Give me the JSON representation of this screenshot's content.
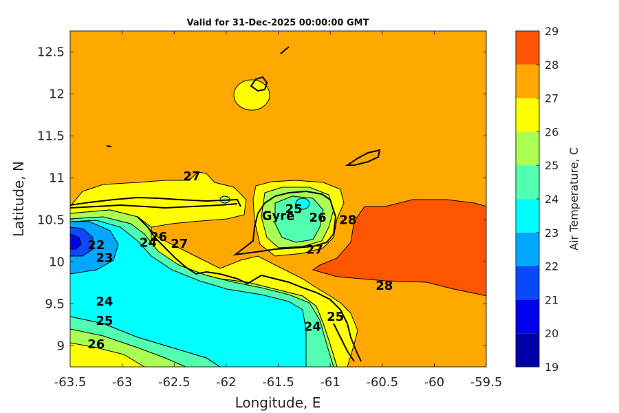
{
  "chart_data": {
    "type": "heatmap",
    "subtype": "filled-contour-map",
    "title": "Valid for 31-Dec-2025 00:00:00 GMT",
    "xlabel": "Longitude, E",
    "ylabel": "Latitude, N",
    "xlim": [
      -63.5,
      -59.5
    ],
    "ylim": [
      8.75,
      12.75
    ],
    "x_ticks": [
      -63.5,
      -63,
      -62.5,
      -62,
      -61.5,
      -61,
      -60.5,
      -60,
      -59.5
    ],
    "x_tick_labels": [
      "-63.5",
      "-63",
      "-62.5",
      "-62",
      "-61.5",
      "-61",
      "-60.5",
      "-60",
      "-59.5"
    ],
    "y_ticks": [
      9,
      9.5,
      10,
      10.5,
      11,
      11.5,
      12,
      12.5
    ],
    "y_tick_labels": [
      "9",
      "9.5",
      "10",
      "10.5",
      "11",
      "11.5",
      "12",
      "12.5"
    ],
    "grid": false,
    "colorbar": {
      "label": "Air Temperature, C",
      "levels": [
        19,
        20,
        21,
        22,
        23,
        24,
        25,
        26,
        27,
        28,
        29
      ],
      "level_labels": [
        "19",
        "20",
        "21",
        "22",
        "23",
        "24",
        "25",
        "26",
        "27",
        "28",
        "29"
      ],
      "colors": [
        "#0000a8",
        "#0000f0",
        "#0a4aff",
        "#00a8ff",
        "#00ffff",
        "#52ffb0",
        "#aaff52",
        "#ffff00",
        "#ffa800",
        "#ff5500",
        "#ff0000"
      ]
    },
    "contour_labels": [
      {
        "text": "27",
        "lon": -62.33,
        "lat": 10.97
      },
      {
        "text": "26",
        "lon": -62.65,
        "lat": 10.25
      },
      {
        "text": "24",
        "lon": -62.75,
        "lat": 10.18
      },
      {
        "text": "27",
        "lon": -62.45,
        "lat": 10.17
      },
      {
        "text": "22",
        "lon": -63.25,
        "lat": 10.15
      },
      {
        "text": "23",
        "lon": -63.17,
        "lat": 10.0
      },
      {
        "text": "24",
        "lon": -63.17,
        "lat": 9.48
      },
      {
        "text": "25",
        "lon": -63.17,
        "lat": 9.25
      },
      {
        "text": "26",
        "lon": -63.25,
        "lat": 8.97
      },
      {
        "text": "25",
        "lon": -61.35,
        "lat": 10.58
      },
      {
        "text": "26",
        "lon": -61.12,
        "lat": 10.48
      },
      {
        "text": "27",
        "lon": -61.15,
        "lat": 10.1
      },
      {
        "text": "28",
        "lon": -60.83,
        "lat": 10.45
      },
      {
        "text": "28",
        "lon": -60.48,
        "lat": 9.67
      },
      {
        "text": "24",
        "lon": -61.17,
        "lat": 9.18
      },
      {
        "text": "25",
        "lon": -60.95,
        "lat": 9.3
      }
    ],
    "place_labels": [
      {
        "text": "Gyre",
        "lon": -61.5,
        "lat": 10.5
      }
    ]
  }
}
